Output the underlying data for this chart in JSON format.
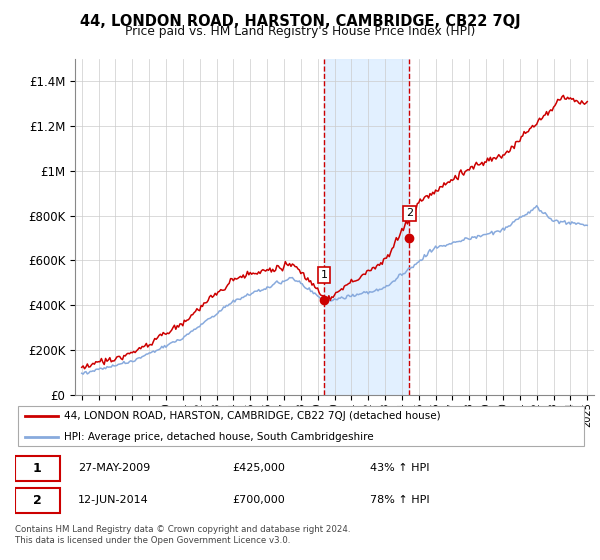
{
  "title": "44, LONDON ROAD, HARSTON, CAMBRIDGE, CB22 7QJ",
  "subtitle": "Price paid vs. HM Land Registry's House Price Index (HPI)",
  "sale1_year": 2009.38,
  "sale1_price": 425000,
  "sale1_label": "1",
  "sale1_date": "27-MAY-2009",
  "sale1_hpi_pct": "43% ↑ HPI",
  "sale2_year": 2014.45,
  "sale2_price": 700000,
  "sale2_label": "2",
  "sale2_date": "12-JUN-2014",
  "sale2_hpi_pct": "78% ↑ HPI",
  "red_line_color": "#cc0000",
  "blue_line_color": "#88aadd",
  "highlight_fill": "#ddeeff",
  "dashed_color": "#cc0000",
  "legend_line1": "44, LONDON ROAD, HARSTON, CAMBRIDGE, CB22 7QJ (detached house)",
  "legend_line2": "HPI: Average price, detached house, South Cambridgeshire",
  "footer": "Contains HM Land Registry data © Crown copyright and database right 2024.\nThis data is licensed under the Open Government Licence v3.0.",
  "ylim_max": 1500000,
  "yticks": [
    0,
    200000,
    400000,
    600000,
    800000,
    1000000,
    1200000,
    1400000
  ]
}
